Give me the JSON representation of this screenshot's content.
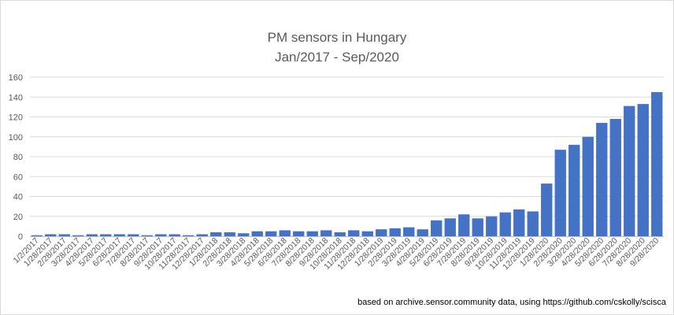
{
  "chart_data": {
    "type": "bar",
    "title": "PM sensors in Hungary",
    "subtitle": "Jan/2017 - Sep/2020",
    "xlabel": "",
    "ylabel": "",
    "ylim": [
      0,
      160
    ],
    "yticks": [
      0,
      20,
      40,
      60,
      80,
      100,
      120,
      140,
      160
    ],
    "grid": true,
    "legend": "none",
    "bar_color": "#4472c4",
    "grid_color": "#d9d9d9",
    "footnote": "based on archive.sensor.community data, using https://github.com/cskolly/scisca",
    "categories": [
      "1/2/2017",
      "1/28/2017",
      "2/28/2017",
      "3/28/2017",
      "4/28/2017",
      "5/28/2017",
      "6/28/2017",
      "7/28/2017",
      "8/28/2017",
      "9/28/2017",
      "10/28/2017",
      "11/28/2017",
      "12/28/2017",
      "1/28/2018",
      "2/28/2018",
      "3/28/2018",
      "4/28/2018",
      "5/28/2018",
      "6/28/2018",
      "7/28/2018",
      "8/28/2018",
      "9/28/2018",
      "10/28/2018",
      "11/28/2018",
      "12/28/2018",
      "1/28/2019",
      "2/28/2019",
      "3/28/2019",
      "4/28/2019",
      "5/28/2019",
      "6/28/2019",
      "7/28/2019",
      "8/28/2019",
      "9/28/2019",
      "10/28/2019",
      "11/28/2019",
      "12/28/2019",
      "1/28/2020",
      "2/28/2020",
      "3/28/2020",
      "4/28/2020",
      "5/28/2020",
      "6/28/2020",
      "7/28/2020",
      "8/28/2020",
      "9/28/2020"
    ],
    "values": [
      1,
      2,
      2,
      1,
      2,
      2,
      2,
      2,
      1,
      2,
      2,
      1,
      2,
      4,
      4,
      3,
      5,
      5,
      6,
      5,
      5,
      6,
      4,
      6,
      5,
      7,
      8,
      9,
      7,
      16,
      18,
      22,
      18,
      20,
      24,
      27,
      25,
      53,
      87,
      92,
      100,
      114,
      118,
      131,
      133,
      145
    ]
  }
}
